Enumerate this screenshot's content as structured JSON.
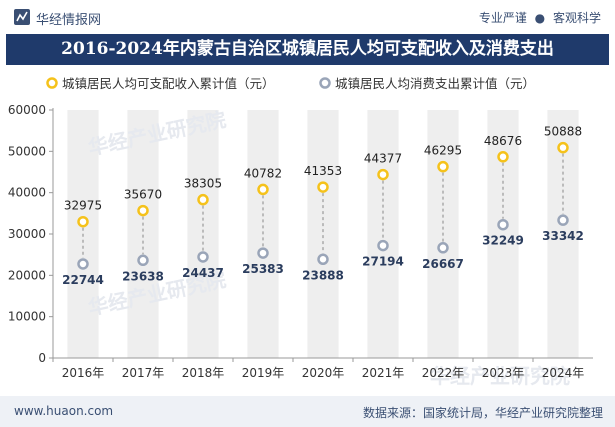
{
  "header": {
    "brand": "华经情报网",
    "tagline_a": "专业严谨",
    "tagline_sep": "●",
    "tagline_b": "客观科学"
  },
  "footer": {
    "url": "www.huaon.com",
    "source": "数据来源：国家统计局，华经产业研究院整理"
  },
  "colors": {
    "title_bg": "#1f3a6b",
    "income": "#f5c21b",
    "consumption": "#9aa5b8",
    "band": "#eeeeee"
  },
  "watermark": "华经产业研究院",
  "chart_data": {
    "type": "scatter",
    "title": "2016-2024年内蒙古自治区城镇居民人均可支配收入及消费支出",
    "categories": [
      "2016年",
      "2017年",
      "2018年",
      "2019年",
      "2020年",
      "2021年",
      "2022年",
      "2023年",
      "2024年"
    ],
    "series": [
      {
        "name": "城镇居民人均可支配收入累计值（元）",
        "values": [
          32975,
          35670,
          38305,
          40782,
          41353,
          44377,
          46295,
          48676,
          50888
        ]
      },
      {
        "name": "城镇居民人均消费支出累计值（元）",
        "values": [
          22744,
          23638,
          24437,
          25383,
          23888,
          27194,
          26667,
          32249,
          33342
        ]
      }
    ],
    "ylim": [
      0,
      60000
    ],
    "yticks": [
      0,
      10000,
      20000,
      30000,
      40000,
      50000,
      60000
    ],
    "xlabel": "",
    "ylabel": "",
    "legend": "top-left"
  }
}
